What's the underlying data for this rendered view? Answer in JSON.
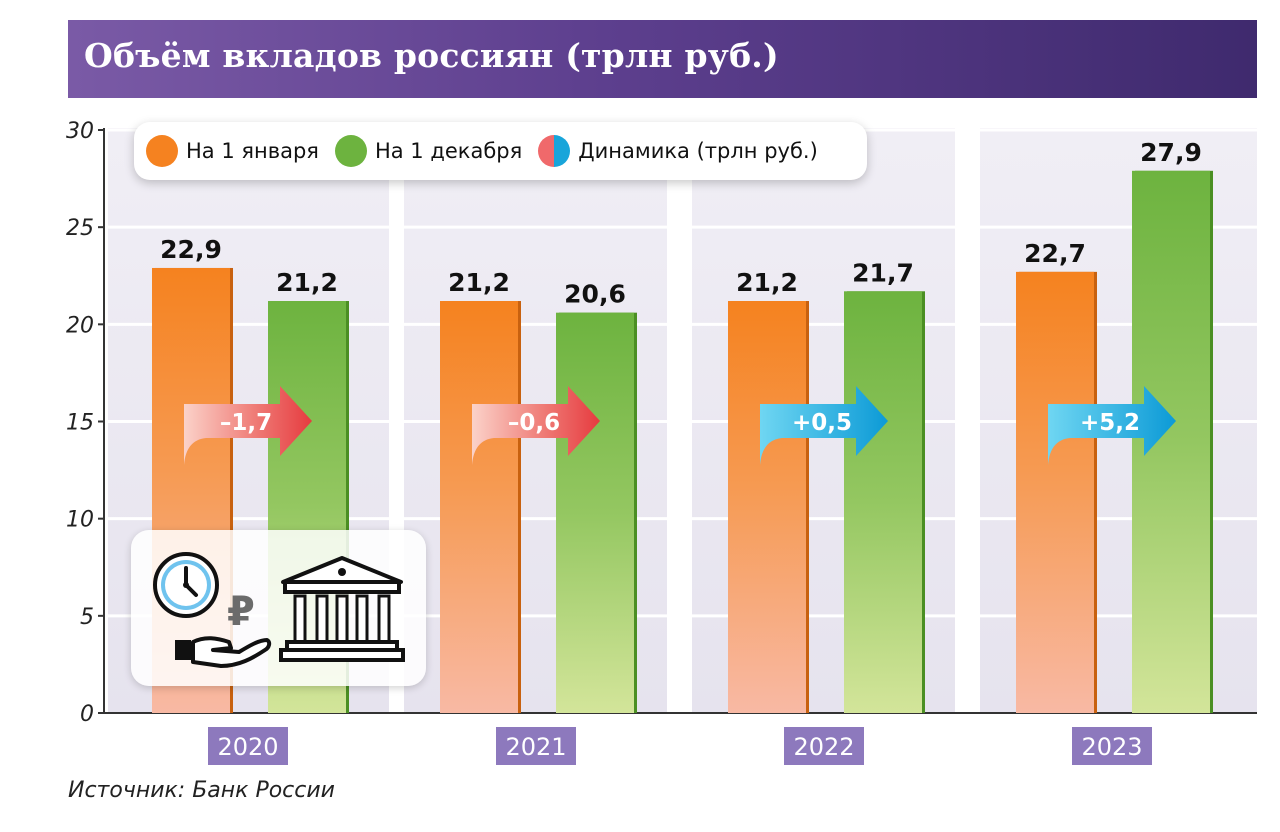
{
  "title": "Объём вкладов россиян (трлн руб.)",
  "source": "Источник: Банк России",
  "legend": [
    {
      "label": "На 1 января",
      "color": "#f58220"
    },
    {
      "label": "На 1 декабря",
      "color": "#6db33f"
    },
    {
      "label": "Динамика (трлн руб.)",
      "color": "split-red-blue"
    }
  ],
  "colors": {
    "orange": "#f58220",
    "green": "#6db33f",
    "negative_arrow": "#e94b4b",
    "positive_arrow": "#1aa6d8",
    "year_label_bg": "#8d79bd"
  },
  "icons": [
    "clock-icon",
    "ruble-icon",
    "hand-icon",
    "bank-building-icon"
  ],
  "chart_data": {
    "type": "bar",
    "categories": [
      "2020",
      "2021",
      "2022",
      "2023"
    ],
    "series": [
      {
        "name": "На 1 января",
        "values": [
          22.9,
          21.2,
          21.2,
          22.7
        ]
      },
      {
        "name": "На 1 декабря",
        "values": [
          21.2,
          20.6,
          21.7,
          27.9
        ]
      }
    ],
    "value_labels": {
      "На 1 января": [
        "22,9",
        "21,2",
        "21,2",
        "22,7"
      ],
      "На 1 декабря": [
        "21,2",
        "20,6",
        "21,7",
        "27,9"
      ]
    },
    "change": [
      -1.7,
      -0.6,
      0.5,
      5.2
    ],
    "change_labels": [
      "–1,7",
      "–0,6",
      "+0,5",
      "+5,2"
    ],
    "y_ticks": [
      0,
      5,
      10,
      15,
      20,
      25,
      30
    ],
    "ylim": [
      0,
      30
    ],
    "title": "Объём вкладов россиян (трлн руб.)",
    "xlabel": "",
    "ylabel": "",
    "grid": true,
    "legend_position": "top-left"
  }
}
